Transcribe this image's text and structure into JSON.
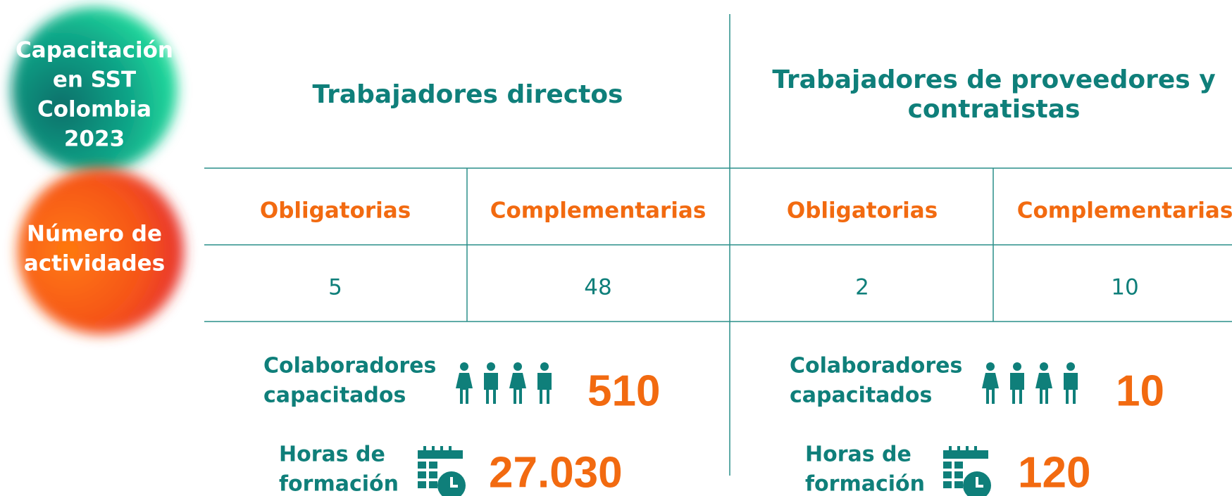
{
  "badges": [
    {
      "lines": [
        "Capacitación",
        "en SST",
        "Colombia",
        "2023"
      ]
    },
    {
      "lines": [
        "Número de",
        "actividades"
      ]
    }
  ],
  "groups": [
    {
      "title_lines": [
        "Trabajadores directos"
      ],
      "columns": [
        {
          "label": "Obligatorias",
          "value": "5"
        },
        {
          "label": "Complementarias",
          "value": "48"
        }
      ],
      "trained_label": [
        "Colaboradores",
        "capacitados"
      ],
      "trained": "510",
      "hours_label": [
        "Horas de",
        "formación"
      ],
      "hours": "27.030"
    },
    {
      "title_lines": [
        "Trabajadores de proveedores y",
        "contratistas"
      ],
      "columns": [
        {
          "label": "Obligatorias",
          "value": "2"
        },
        {
          "label": "Complementarias",
          "value": "10"
        }
      ],
      "trained_label": [
        "Colaboradores",
        "capacitados"
      ],
      "trained": "10",
      "hours_label": [
        "Horas de",
        "formación"
      ],
      "hours": "120"
    }
  ]
}
